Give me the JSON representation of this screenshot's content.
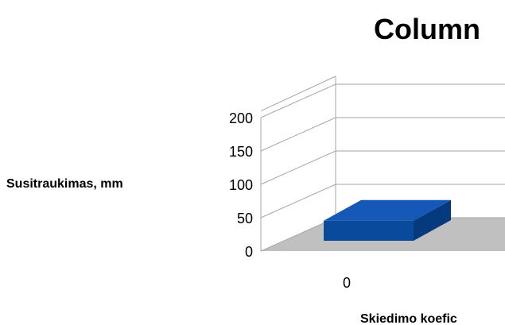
{
  "chart_data": {
    "type": "bar",
    "title": "Column",
    "xlabel": "Skiedimo koefic",
    "ylabel": "Susitraukimas, mm",
    "categories": [
      "0"
    ],
    "series": [
      {
        "values": [
          30
        ]
      }
    ],
    "ylim": [
      0,
      200
    ],
    "yticks": [
      "0",
      "50",
      "100",
      "150",
      "200"
    ],
    "grid": true,
    "three_d": true,
    "colors": {
      "bar_front": "#0a4a9c",
      "bar_top": "#1658b8",
      "bar_side": "#063a7e",
      "floor": "#c0c0c0",
      "grid": "#a6a6a6"
    }
  }
}
